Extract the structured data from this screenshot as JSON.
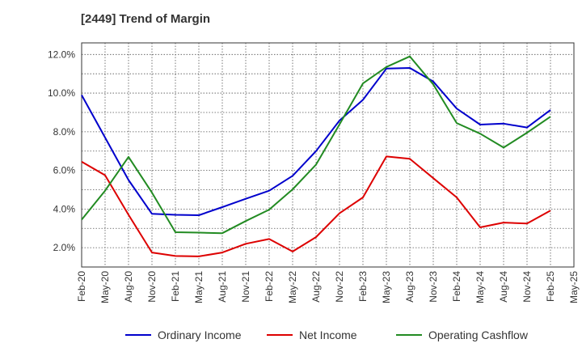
{
  "chart_data": {
    "type": "line",
    "title": "[2449]  Trend of Margin",
    "categories": [
      "Feb-20",
      "May-20",
      "Aug-20",
      "Nov-20",
      "Feb-21",
      "May-21",
      "Aug-21",
      "Nov-21",
      "Feb-22",
      "May-22",
      "Aug-22",
      "Nov-22",
      "Feb-23",
      "May-23",
      "Aug-23",
      "Nov-23",
      "Feb-24",
      "May-24",
      "Aug-24",
      "Nov-24",
      "Feb-25",
      "May-25"
    ],
    "yticks": [
      "2.0%",
      "4.0%",
      "6.0%",
      "8.0%",
      "10.0%",
      "12.0%"
    ],
    "ylim": [
      1.0,
      12.6
    ],
    "grid": true,
    "legend_position": "bottom",
    "series": [
      {
        "name": "Ordinary Income",
        "color": "#0000cc",
        "values": [
          9.9,
          7.7,
          5.5,
          3.75,
          3.7,
          3.68,
          4.1,
          4.53,
          4.95,
          5.72,
          7.0,
          8.58,
          9.65,
          11.27,
          11.3,
          10.6,
          9.2,
          8.37,
          8.42,
          8.22,
          9.13,
          null
        ]
      },
      {
        "name": "Net Income",
        "color": "#dd0000",
        "values": [
          6.45,
          5.75,
          3.7,
          1.75,
          1.57,
          1.55,
          1.75,
          2.2,
          2.45,
          1.8,
          2.55,
          3.78,
          4.6,
          6.72,
          6.6,
          5.6,
          4.6,
          3.05,
          3.3,
          3.25,
          3.92,
          null
        ]
      },
      {
        "name": "Operating Cashflow",
        "color": "#228b22",
        "values": [
          3.45,
          4.95,
          6.7,
          4.85,
          2.8,
          2.78,
          2.75,
          3.38,
          3.97,
          5.02,
          6.3,
          8.38,
          10.5,
          11.35,
          11.9,
          10.45,
          8.45,
          7.9,
          7.18,
          7.95,
          8.78,
          null
        ]
      }
    ]
  }
}
